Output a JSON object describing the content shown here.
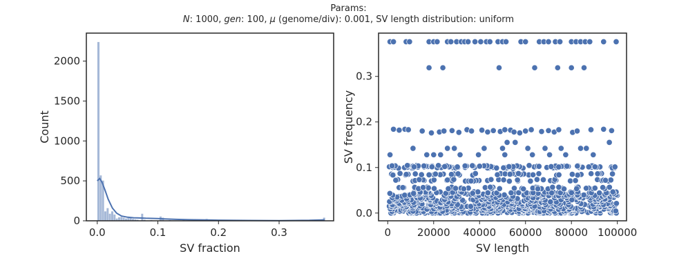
{
  "figure": {
    "title_line1": "Params:",
    "title_parts": {
      "n_sym": "N",
      "n_val": ": 1000, ",
      "gen_sym": "gen",
      "gen_val": ": 100, ",
      "mu_sym": "μ",
      "mu_val": " (genome/div): 0.001, SV length distribution: uniform"
    },
    "colors": {
      "bar": "#4c72b0",
      "kde": "#4c72b0",
      "point": "#4c72b0",
      "point_edge": "#ffffff",
      "axis": "#262626"
    }
  },
  "chart_data": [
    {
      "type": "bar",
      "subtype": "histogram_with_kde",
      "xlabel": "SV fraction",
      "ylabel": "Count",
      "xlim": [
        -0.018,
        0.39
      ],
      "ylim": [
        0,
        2350
      ],
      "xticks": [
        0.0,
        0.1,
        0.2,
        0.3
      ],
      "xtick_labels": [
        "0.0",
        "0.1",
        "0.2",
        "0.3"
      ],
      "yticks": [
        0,
        500,
        1000,
        1500,
        2000
      ],
      "ytick_labels": [
        "0",
        "500",
        "1000",
        "1500",
        "2000"
      ],
      "bin_width": 0.0038,
      "bins": [
        {
          "x": 0.0,
          "count": 2240
        },
        {
          "x": 0.0038,
          "count": 570
        },
        {
          "x": 0.0076,
          "count": 505
        },
        {
          "x": 0.0114,
          "count": 120
        },
        {
          "x": 0.0152,
          "count": 160
        },
        {
          "x": 0.019,
          "count": 90
        },
        {
          "x": 0.0228,
          "count": 120
        },
        {
          "x": 0.0266,
          "count": 80
        },
        {
          "x": 0.0304,
          "count": 30
        },
        {
          "x": 0.0342,
          "count": 45
        },
        {
          "x": 0.038,
          "count": 50
        },
        {
          "x": 0.0418,
          "count": 40
        },
        {
          "x": 0.0456,
          "count": 30
        },
        {
          "x": 0.0494,
          "count": 35
        },
        {
          "x": 0.0532,
          "count": 45
        },
        {
          "x": 0.057,
          "count": 25
        },
        {
          "x": 0.0608,
          "count": 20
        },
        {
          "x": 0.0646,
          "count": 15
        },
        {
          "x": 0.0722,
          "count": 90
        },
        {
          "x": 0.076,
          "count": 15
        },
        {
          "x": 0.0874,
          "count": 10
        },
        {
          "x": 0.1026,
          "count": 55
        },
        {
          "x": 0.1064,
          "count": 40
        },
        {
          "x": 0.1178,
          "count": 10
        },
        {
          "x": 0.1406,
          "count": 10
        },
        {
          "x": 0.1558,
          "count": 8
        },
        {
          "x": 0.1786,
          "count": 25
        },
        {
          "x": 0.2432,
          "count": 5
        },
        {
          "x": 0.3724,
          "count": 40
        }
      ],
      "kde": [
        [
          0.0,
          500
        ],
        [
          0.004,
          530
        ],
        [
          0.008,
          480
        ],
        [
          0.013,
          380
        ],
        [
          0.018,
          270
        ],
        [
          0.025,
          160
        ],
        [
          0.032,
          95
        ],
        [
          0.04,
          60
        ],
        [
          0.05,
          45
        ],
        [
          0.06,
          38
        ],
        [
          0.07,
          35
        ],
        [
          0.08,
          32
        ],
        [
          0.09,
          30
        ],
        [
          0.1,
          28
        ],
        [
          0.11,
          24
        ],
        [
          0.13,
          18
        ],
        [
          0.15,
          14
        ],
        [
          0.17,
          12
        ],
        [
          0.18,
          11
        ],
        [
          0.2,
          8
        ],
        [
          0.25,
          4
        ],
        [
          0.3,
          3
        ],
        [
          0.35,
          6
        ],
        [
          0.375,
          12
        ]
      ]
    },
    {
      "type": "scatter",
      "xlabel": "SV length",
      "ylabel": "SV frequency",
      "xlim": [
        -4000,
        104000
      ],
      "ylim": [
        -0.017,
        0.395
      ],
      "xticks": [
        0,
        20000,
        40000,
        60000,
        80000,
        100000
      ],
      "xtick_labels": [
        "0",
        "20000",
        "40000",
        "60000",
        "80000",
        "100000"
      ],
      "yticks": [
        0.0,
        0.1,
        0.2,
        0.3
      ],
      "ytick_labels": [
        "0.0",
        "0.1",
        "0.2",
        "0.3"
      ],
      "points": [
        [
          1000,
          0.376
        ],
        [
          2500,
          0.376
        ],
        [
          8000,
          0.376
        ],
        [
          9500,
          0.376
        ],
        [
          18000,
          0.376
        ],
        [
          20000,
          0.376
        ],
        [
          21500,
          0.376
        ],
        [
          26000,
          0.376
        ],
        [
          27500,
          0.376
        ],
        [
          30000,
          0.376
        ],
        [
          32000,
          0.376
        ],
        [
          33500,
          0.376
        ],
        [
          35000,
          0.376
        ],
        [
          38000,
          0.376
        ],
        [
          40500,
          0.376
        ],
        [
          43000,
          0.376
        ],
        [
          44500,
          0.376
        ],
        [
          48000,
          0.376
        ],
        [
          50000,
          0.376
        ],
        [
          51500,
          0.376
        ],
        [
          58000,
          0.376
        ],
        [
          60000,
          0.376
        ],
        [
          66000,
          0.376
        ],
        [
          68000,
          0.376
        ],
        [
          70000,
          0.376
        ],
        [
          73000,
          0.376
        ],
        [
          75000,
          0.376
        ],
        [
          80000,
          0.376
        ],
        [
          82000,
          0.376
        ],
        [
          84000,
          0.376
        ],
        [
          86000,
          0.376
        ],
        [
          88000,
          0.376
        ],
        [
          94000,
          0.376
        ],
        [
          99500,
          0.376
        ],
        [
          18000,
          0.319
        ],
        [
          24000,
          0.319
        ],
        [
          48500,
          0.319
        ],
        [
          64000,
          0.319
        ],
        [
          74000,
          0.319
        ],
        [
          80000,
          0.319
        ],
        [
          85500,
          0.319
        ],
        [
          2500,
          0.184
        ],
        [
          5000,
          0.182
        ],
        [
          7500,
          0.184
        ],
        [
          9000,
          0.183
        ],
        [
          15000,
          0.18
        ],
        [
          19000,
          0.176
        ],
        [
          22500,
          0.178
        ],
        [
          24500,
          0.18
        ],
        [
          28000,
          0.181
        ],
        [
          31000,
          0.177
        ],
        [
          34500,
          0.183
        ],
        [
          36500,
          0.18
        ],
        [
          41000,
          0.182
        ],
        [
          43500,
          0.178
        ],
        [
          46000,
          0.181
        ],
        [
          49000,
          0.179
        ],
        [
          51000,
          0.183
        ],
        [
          53500,
          0.182
        ],
        [
          55000,
          0.178
        ],
        [
          57500,
          0.176
        ],
        [
          60000,
          0.18
        ],
        [
          62500,
          0.183
        ],
        [
          67000,
          0.179
        ],
        [
          70000,
          0.181
        ],
        [
          72500,
          0.178
        ],
        [
          74500,
          0.183
        ],
        [
          80500,
          0.177
        ],
        [
          82500,
          0.18
        ],
        [
          88500,
          0.183
        ],
        [
          94000,
          0.184
        ],
        [
          97500,
          0.181
        ],
        [
          96500,
          0.155
        ],
        [
          11000,
          0.142
        ],
        [
          26000,
          0.142
        ],
        [
          29000,
          0.142
        ],
        [
          42000,
          0.142
        ],
        [
          50000,
          0.142
        ],
        [
          52000,
          0.155
        ],
        [
          55500,
          0.155
        ],
        [
          61000,
          0.142
        ],
        [
          68500,
          0.142
        ],
        [
          75500,
          0.142
        ],
        [
          84000,
          0.142
        ],
        [
          86500,
          0.142
        ],
        [
          1000,
          0.128
        ],
        [
          17000,
          0.128
        ],
        [
          20000,
          0.128
        ],
        [
          23000,
          0.128
        ],
        [
          31500,
          0.128
        ],
        [
          39500,
          0.128
        ],
        [
          51000,
          0.128
        ],
        [
          63000,
          0.128
        ],
        [
          70500,
          0.128
        ],
        [
          77500,
          0.128
        ],
        [
          89500,
          0.128
        ]
      ],
      "dense_band_levels": [
        0.0,
        0.005,
        0.01,
        0.015,
        0.02,
        0.025,
        0.03,
        0.035,
        0.04,
        0.045,
        0.055,
        0.072,
        0.085,
        0.1,
        0.103
      ]
    }
  ]
}
